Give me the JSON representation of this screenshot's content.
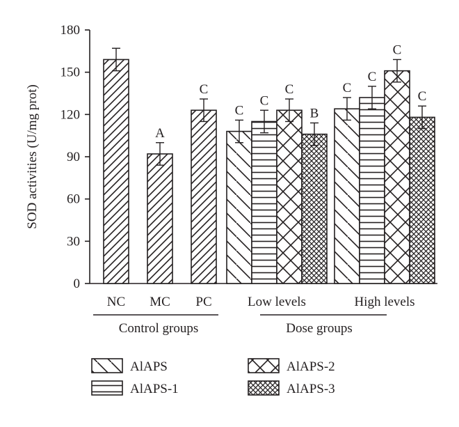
{
  "chart_data": {
    "type": "bar",
    "ylabel": "SOD activities (U/mg prot)",
    "ylim": [
      0,
      180
    ],
    "yticks": [
      0,
      30,
      60,
      90,
      120,
      150,
      180
    ],
    "grid": false,
    "legend_position": "bottom",
    "group_labels": [
      "Control groups",
      "Dose groups"
    ],
    "categories": [
      "NC",
      "MC",
      "PC",
      "Low levels",
      "High levels"
    ],
    "series": [
      {
        "name": "AlAPS",
        "pattern": "diagonal",
        "values": [
          159,
          92,
          123,
          108,
          124
        ],
        "errors": [
          8,
          8,
          8,
          8,
          8
        ],
        "labels": [
          "",
          "A",
          "C",
          "C",
          "C"
        ]
      },
      {
        "name": "AlAPS-1",
        "pattern": "horizontal",
        "values": [
          null,
          null,
          null,
          115,
          132
        ],
        "errors": [
          null,
          null,
          null,
          8,
          8
        ],
        "labels": [
          "",
          "",
          "",
          "C",
          "C"
        ]
      },
      {
        "name": "AlAPS-2",
        "pattern": "crosshatch-diagonal",
        "values": [
          null,
          null,
          null,
          123,
          151
        ],
        "errors": [
          null,
          null,
          null,
          8,
          8
        ],
        "labels": [
          "",
          "",
          "",
          "C",
          "C"
        ]
      },
      {
        "name": "AlAPS-3",
        "pattern": "dense-crosshatch",
        "values": [
          null,
          null,
          null,
          106,
          118
        ],
        "errors": [
          null,
          null,
          null,
          8,
          8
        ],
        "labels": [
          "",
          "",
          "",
          "B",
          "C"
        ]
      }
    ]
  }
}
